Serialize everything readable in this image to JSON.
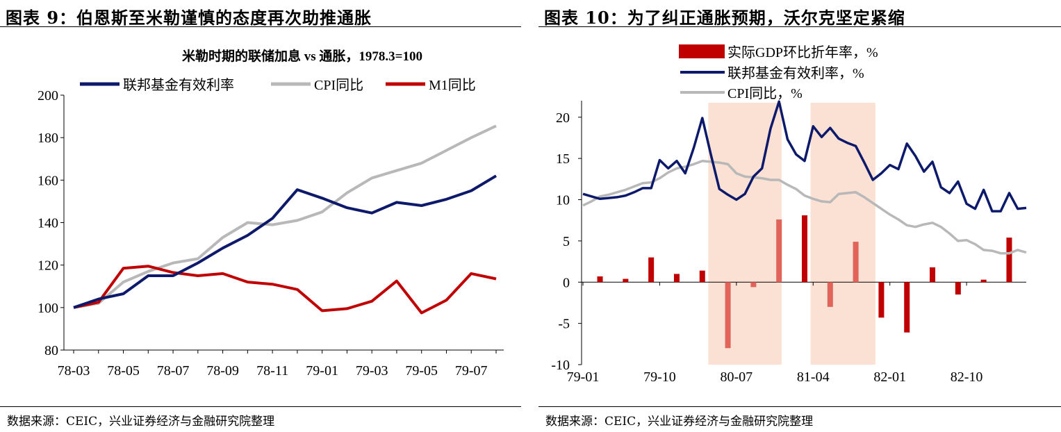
{
  "left": {
    "figure_title": "图表 9：伯恩斯至米勒谨慎的态度再次助推通胀",
    "source": "数据来源：CEIC，兴业证券经济与金融研究院整理"
  },
  "right": {
    "figure_title": "图表 10：为了纠正通胀预期，沃尔克坚定紧缩",
    "source": "数据来源：CEIC，兴业证券经济与金融研究院整理"
  },
  "chart_data": [
    {
      "type": "line",
      "title": "米勒时期的联储加息 vs 通胀，1978.3=100",
      "xlabel": "",
      "ylabel": "",
      "ylim": [
        80,
        200
      ],
      "yticks": [
        80,
        100,
        120,
        140,
        160,
        180,
        200
      ],
      "x": [
        "78-03",
        "78-04",
        "78-05",
        "78-06",
        "78-07",
        "78-08",
        "78-09",
        "78-10",
        "78-11",
        "78-12",
        "79-01",
        "79-02",
        "79-03",
        "79-04",
        "79-05",
        "79-06",
        "79-07",
        "79-08"
      ],
      "xtick_labels": [
        "78-03",
        "78-05",
        "78-07",
        "78-09",
        "78-11",
        "79-01",
        "79-03",
        "79-05",
        "79-07"
      ],
      "legend_position": "top",
      "grid": false,
      "series": [
        {
          "name": "联邦基金有效利率",
          "color": "#0d1a6b",
          "values": [
            100,
            104,
            106.5,
            115,
            115,
            121,
            128,
            134,
            142,
            155.5,
            151.5,
            147,
            144.5,
            149.5,
            148,
            151,
            155,
            162
          ]
        },
        {
          "name": "CPI同比",
          "color": "#b8b8b8",
          "values": [
            100,
            102,
            112,
            117,
            121,
            123,
            133,
            140,
            139,
            141,
            145,
            154,
            161,
            164.5,
            168,
            174,
            180,
            185.5
          ]
        },
        {
          "name": "M1同比",
          "color": "#c00000",
          "values": [
            100,
            102.5,
            118.5,
            119.5,
            116.5,
            115,
            116,
            112,
            111,
            108.5,
            98.5,
            99.5,
            103,
            112.5,
            97.5,
            103.5,
            116,
            113.5
          ]
        }
      ]
    },
    {
      "type": "bar+line",
      "title": "",
      "xlabel": "",
      "ylabel": "",
      "ylim": [
        -10,
        22
      ],
      "yticks": [
        -10,
        -5,
        0,
        5,
        10,
        15,
        20
      ],
      "x_range": [
        "79-01",
        "83-04"
      ],
      "xtick_labels": [
        "79-01",
        "79-10",
        "80-07",
        "81-04",
        "82-01",
        "82-10"
      ],
      "legend_position": "top-left",
      "grid": false,
      "shaded_periods": [
        [
          "80-04",
          "80-12"
        ],
        [
          "81-04",
          "81-11"
        ]
      ],
      "series": [
        {
          "name": "实际GDP环比折年率，%",
          "kind": "bar",
          "color": "#c00000",
          "points": [
            [
              2,
              0.7
            ],
            [
              5,
              0.4
            ],
            [
              8,
              3.0
            ],
            [
              11,
              1.0
            ],
            [
              14,
              1.4
            ],
            [
              17,
              -8.0
            ],
            [
              20,
              -0.6
            ],
            [
              23,
              7.6
            ],
            [
              26,
              8.1
            ],
            [
              29,
              -3.0
            ],
            [
              32,
              4.9
            ],
            [
              35,
              -4.3
            ],
            [
              38,
              -6.1
            ],
            [
              41,
              1.8
            ],
            [
              44,
              -1.5
            ],
            [
              47,
              0.3
            ],
            [
              50,
              5.4
            ]
          ]
        },
        {
          "name": "联邦基金有效利率，%",
          "kind": "line",
          "color": "#0d1a6b",
          "points": [
            [
              0,
              10.7
            ],
            [
              1,
              10.4
            ],
            [
              2,
              10.1
            ],
            [
              3,
              10.2
            ],
            [
              4,
              10.3
            ],
            [
              5,
              10.5
            ],
            [
              6,
              10.9
            ],
            [
              7,
              11.4
            ],
            [
              8,
              11.4
            ],
            [
              9,
              14.8
            ],
            [
              10,
              13.8
            ],
            [
              11,
              14.7
            ],
            [
              12,
              13.2
            ],
            [
              13,
              16.3
            ],
            [
              14,
              19.9
            ],
            [
              15,
              15.5
            ],
            [
              16,
              11.3
            ],
            [
              17,
              10.6
            ],
            [
              18,
              10.0
            ],
            [
              19,
              10.7
            ],
            [
              20,
              12.8
            ],
            [
              21,
              13.8
            ],
            [
              22,
              18.6
            ],
            [
              23,
              21.9
            ],
            [
              24,
              17.3
            ],
            [
              25,
              15.5
            ],
            [
              26,
              14.7
            ],
            [
              27,
              18.9
            ],
            [
              28,
              17.6
            ],
            [
              29,
              18.7
            ],
            [
              30,
              17.4
            ],
            [
              31,
              16.9
            ],
            [
              32,
              16.5
            ],
            [
              33,
              14.5
            ],
            [
              34,
              12.4
            ],
            [
              35,
              13.2
            ],
            [
              36,
              14.2
            ],
            [
              37,
              13.7
            ],
            [
              38,
              16.8
            ],
            [
              39,
              15.3
            ],
            [
              40,
              13.4
            ],
            [
              41,
              14.6
            ],
            [
              42,
              11.5
            ],
            [
              43,
              10.8
            ],
            [
              44,
              12.2
            ],
            [
              45,
              9.5
            ],
            [
              46,
              8.9
            ],
            [
              47,
              11.2
            ],
            [
              48,
              8.6
            ],
            [
              49,
              8.6
            ],
            [
              50,
              10.8
            ],
            [
              51,
              8.9
            ],
            [
              52,
              9.0
            ]
          ]
        },
        {
          "name": "CPI同比，%",
          "kind": "line",
          "color": "#b8b8b8",
          "points": [
            [
              0,
              9.3
            ],
            [
              1,
              9.8
            ],
            [
              2,
              10.4
            ],
            [
              3,
              10.6
            ],
            [
              4,
              10.9
            ],
            [
              5,
              11.2
            ],
            [
              6,
              11.6
            ],
            [
              7,
              12.0
            ],
            [
              8,
              12.1
            ],
            [
              9,
              12.6
            ],
            [
              10,
              13.3
            ],
            [
              11,
              13.8
            ],
            [
              12,
              14.0
            ],
            [
              13,
              14.3
            ],
            [
              14,
              14.7
            ],
            [
              15,
              14.6
            ],
            [
              16,
              14.5
            ],
            [
              17,
              14.3
            ],
            [
              18,
              13.2
            ],
            [
              19,
              12.8
            ],
            [
              20,
              12.7
            ],
            [
              21,
              12.6
            ],
            [
              22,
              12.4
            ],
            [
              23,
              12.4
            ],
            [
              24,
              11.8
            ],
            [
              25,
              11.3
            ],
            [
              26,
              10.5
            ],
            [
              27,
              10.1
            ],
            [
              28,
              9.8
            ],
            [
              29,
              9.7
            ],
            [
              30,
              10.7
            ],
            [
              31,
              10.8
            ],
            [
              32,
              10.9
            ],
            [
              33,
              10.3
            ],
            [
              34,
              9.6
            ],
            [
              35,
              8.9
            ],
            [
              36,
              8.2
            ],
            [
              37,
              7.6
            ],
            [
              38,
              6.9
            ],
            [
              39,
              6.7
            ],
            [
              40,
              7.0
            ],
            [
              41,
              7.2
            ],
            [
              42,
              6.7
            ],
            [
              43,
              5.9
            ],
            [
              44,
              5.0
            ],
            [
              45,
              5.1
            ],
            [
              46,
              4.6
            ],
            [
              47,
              3.9
            ],
            [
              48,
              3.8
            ],
            [
              49,
              3.5
            ],
            [
              50,
              3.5
            ],
            [
              51,
              3.9
            ],
            [
              52,
              3.6
            ]
          ]
        }
      ]
    }
  ]
}
